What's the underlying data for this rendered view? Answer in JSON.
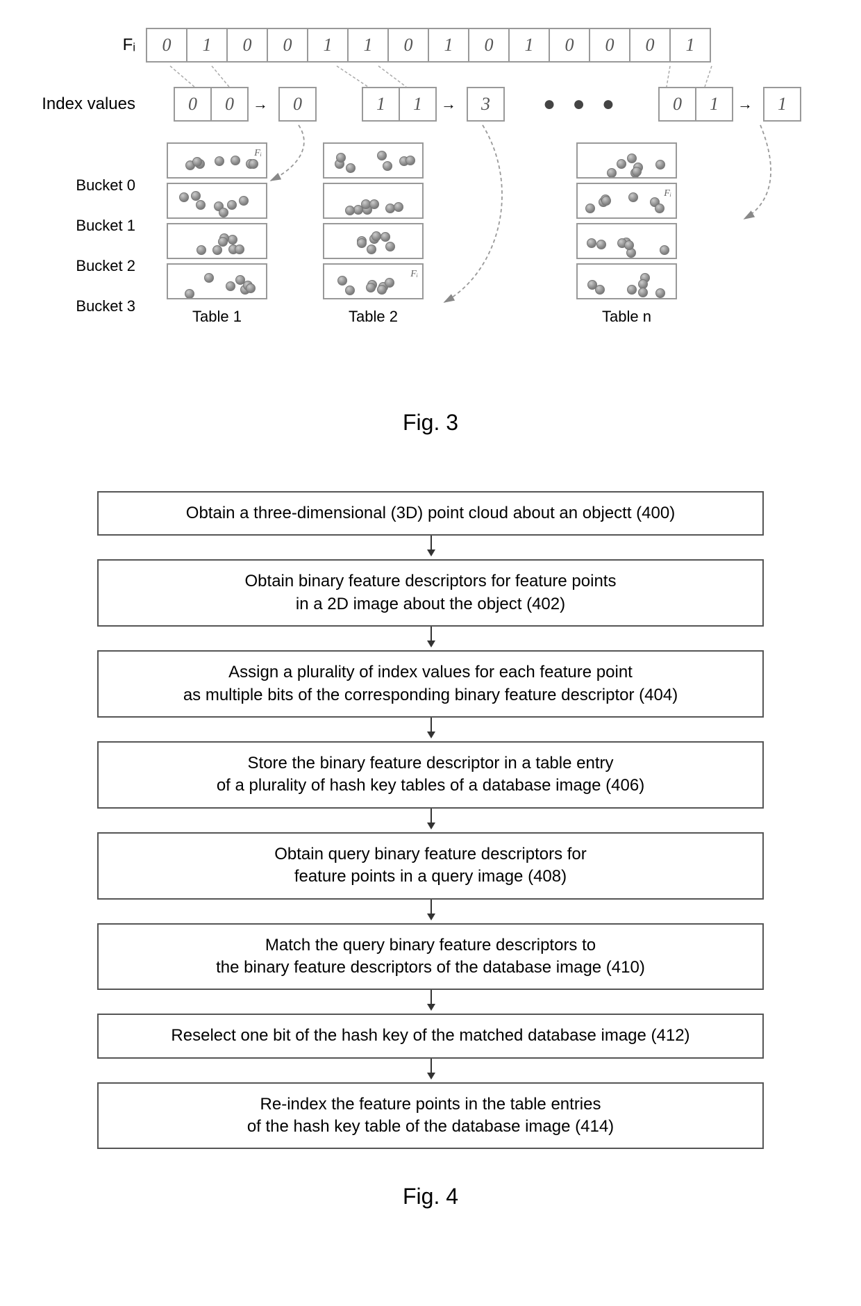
{
  "fig3": {
    "title": "Fig. 3",
    "f_label": "Fᵢ",
    "index_label": "Index values",
    "bits": [
      "0",
      "1",
      "0",
      "0",
      "1",
      "1",
      "0",
      "1",
      "0",
      "1",
      "0",
      "0",
      "0",
      "1"
    ],
    "groups": [
      {
        "pair": [
          "0",
          "0"
        ],
        "result": "0",
        "table_name": "Table 1",
        "bucket_marker_idx": 0
      },
      {
        "pair": [
          "1",
          "1"
        ],
        "result": "3",
        "table_name": "Table 2",
        "bucket_marker_idx": 3
      },
      {
        "pair": [
          "0",
          "1"
        ],
        "result": "1",
        "table_name": "Table n",
        "bucket_marker_idx": 1
      }
    ],
    "bucket_labels": [
      "Bucket 0",
      "Bucket 1",
      "Bucket 2",
      "Bucket 3"
    ],
    "ellipsis": "●  ●  ●",
    "marker": "Fᵢ",
    "blobs_per_bucket": 7,
    "colors": {
      "border": "#999999",
      "text": "#000000",
      "arrow": "#888888"
    }
  },
  "fig4": {
    "title": "Fig. 4",
    "steps": [
      "Obtain a three-dimensional (3D) point cloud about an objectt (400)",
      "Obtain binary feature descriptors for feature points\nin a 2D image about the object (402)",
      "Assign a plurality of index values for each feature point\nas multiple bits of the corresponding binary feature descriptor (404)",
      "Store the binary feature descriptor in a table entry\nof a plurality of hash key tables of a database image (406)",
      "Obtain query binary feature descriptors for\nfeature points in a query image (408)",
      "Match the query binary feature descriptors to\nthe binary feature descriptors of the database image (410)",
      "Reselect one bit of the hash key of the matched database image (412)",
      "Re-index the feature points in the table entries\nof the hash key table of the database image (414)"
    ]
  }
}
